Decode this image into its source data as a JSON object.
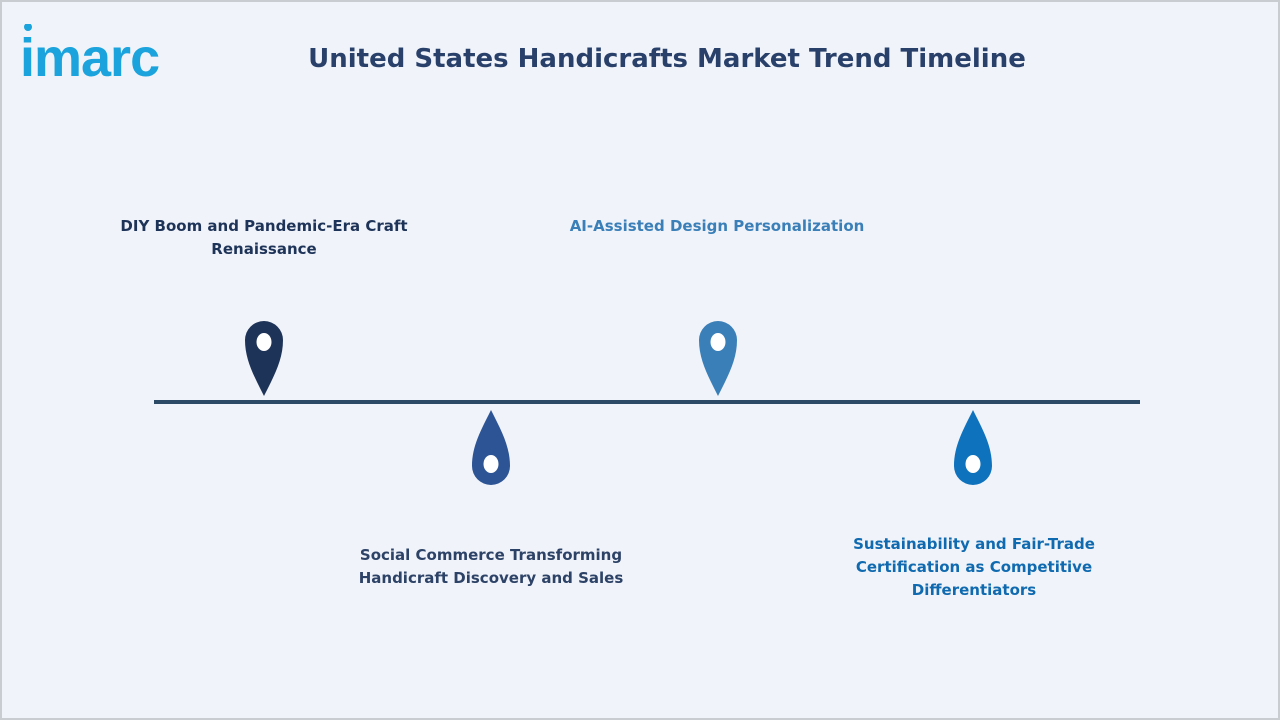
{
  "brand": {
    "logo_text": "imarc",
    "color": "#1aa3dc"
  },
  "header": {
    "title": "United States Handicrafts Market Trend Timeline"
  },
  "milestones": [
    {
      "label": "DIY Boom and Pandemic-Era Craft Renaissance",
      "color": "#1e3358",
      "position": "above"
    },
    {
      "label": "Social Commerce Transforming Handicraft Discovery and Sales",
      "color": "#2d5494",
      "position": "below"
    },
    {
      "label": "AI-Assisted Design Personalization",
      "color": "#3a7fb8",
      "position": "above"
    },
    {
      "label": "Sustainability and Fair-Trade Certification as Competitive Differentiators",
      "color": "#0f72bd",
      "position": "below"
    }
  ]
}
